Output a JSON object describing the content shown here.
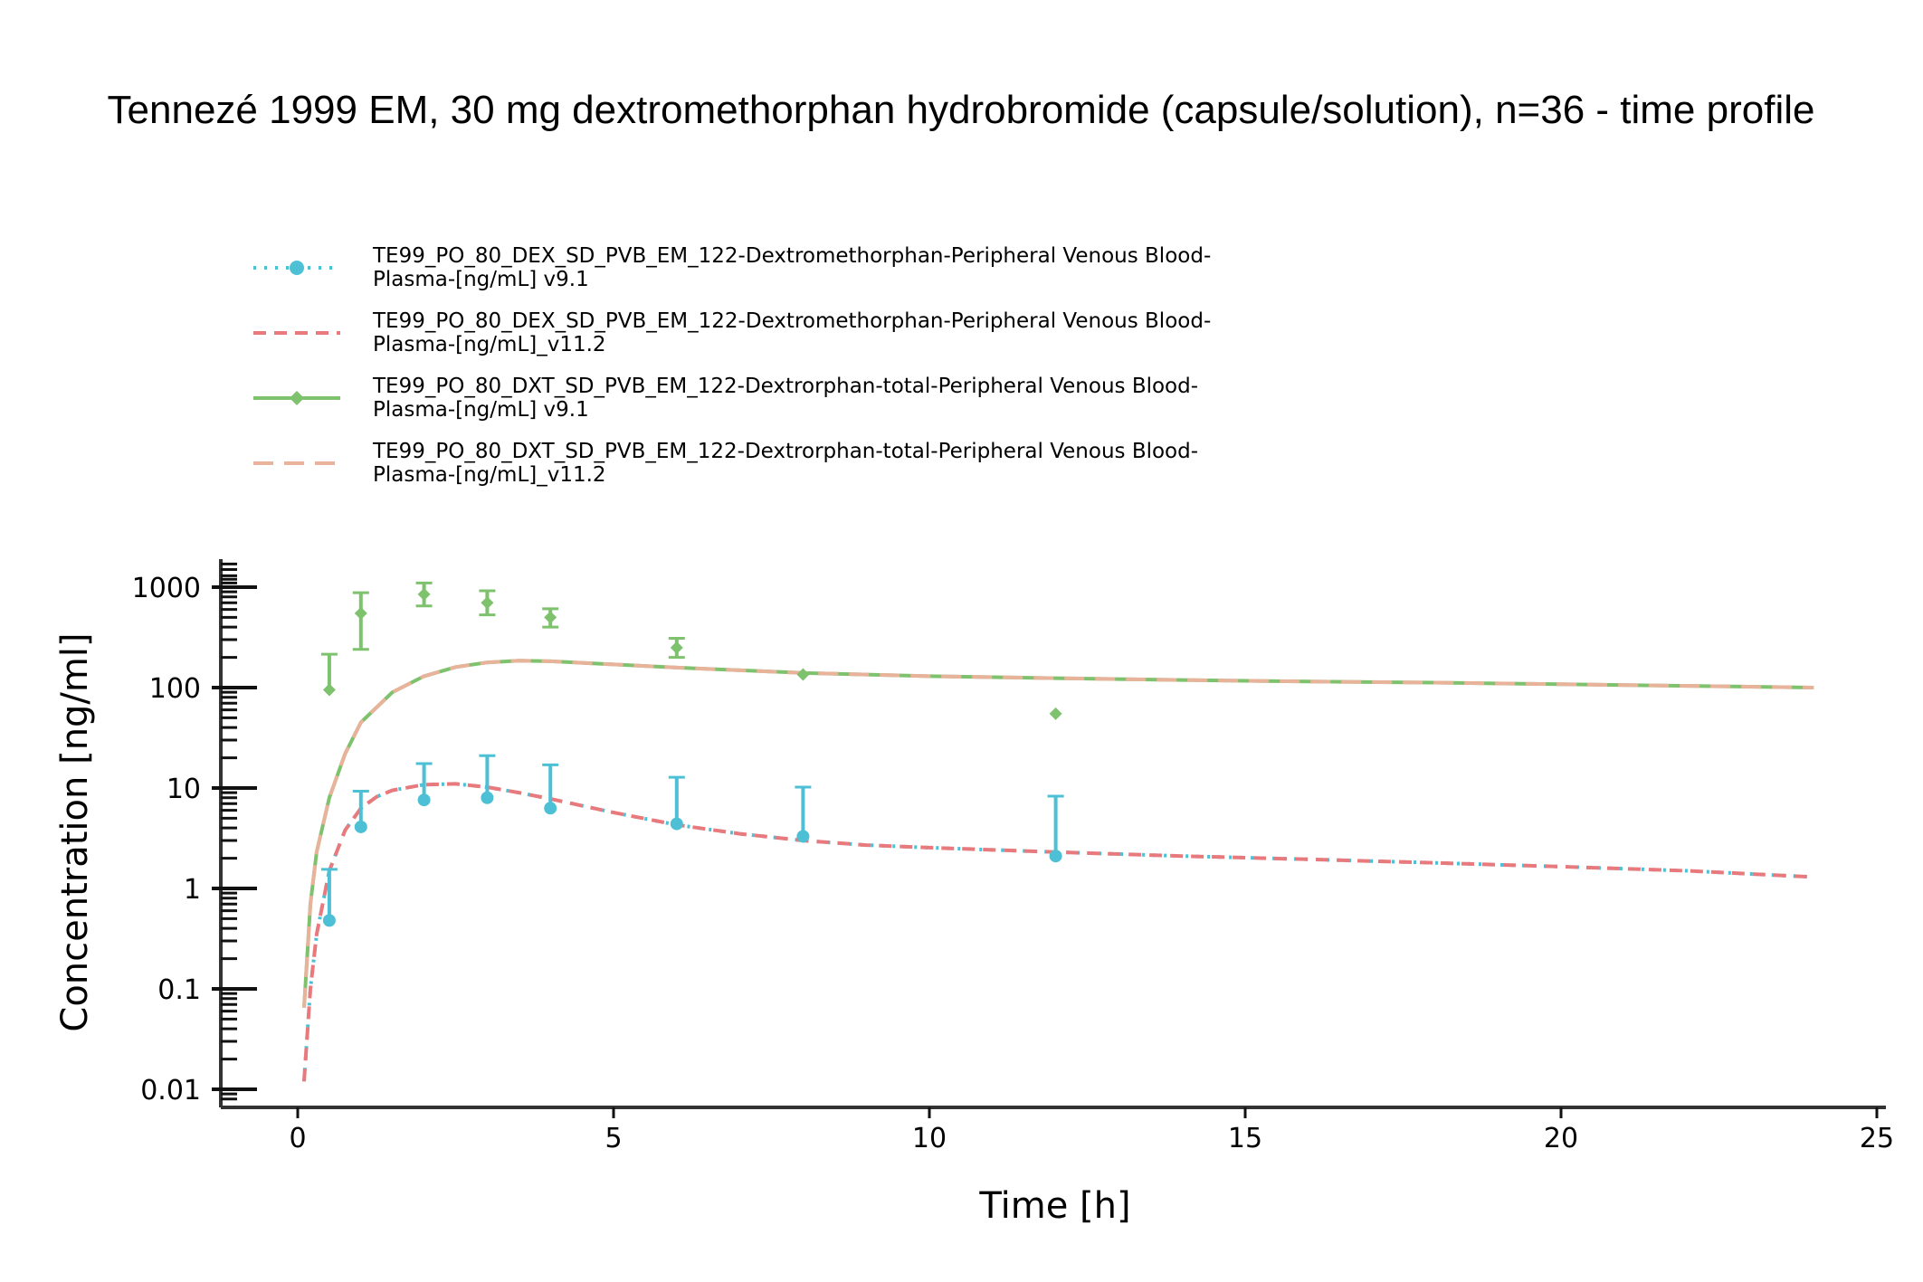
{
  "chart_data": {
    "type": "scatter",
    "title": "Tennezé 1999 EM, 30 mg dextromethorphan hydrobromide (capsule/solution), n=36 - time profile",
    "xlabel": "Time [h]",
    "ylabel": "Concentration [ng/ml]",
    "xlim": [
      -1.2,
      25.2
    ],
    "ylim": [
      0.007,
      2000
    ],
    "yscale": "log",
    "xticks": [
      0,
      5,
      10,
      15,
      20,
      25
    ],
    "xtick_labels": [
      "0",
      "5",
      "10",
      "15",
      "20",
      "25"
    ],
    "yticks": [
      0.01,
      0.1,
      1,
      10,
      100,
      1000
    ],
    "ytick_labels": [
      "0.01",
      "0.1",
      "1",
      "10",
      "100",
      "1000"
    ],
    "grid": false,
    "legend_position": "top-left",
    "series": [
      {
        "name": "TE99_PO_80_DEX_SD_PVB_EM_122-Dextromethorphan-Peripheral Venous Blood-Plasma-[ng/mL] v9.1",
        "legend_lines": [
          "TE99_PO_80_DEX_SD_PVB_EM_122-Dextromethorphan-Peripheral Venous Blood-",
          "Plasma-[ng/mL] v9.1"
        ],
        "kind": "observed-with-curve",
        "marker": "circle",
        "line_style": "dotted",
        "color": "#4DC0D6",
        "x": [
          0.5,
          1,
          2,
          3,
          4,
          6,
          8,
          12
        ],
        "y": [
          0.48,
          4.1,
          7.6,
          8.0,
          6.3,
          4.4,
          3.3,
          2.1
        ],
        "y_upper": [
          1.55,
          9.3,
          17.5,
          21.0,
          17.0,
          12.8,
          10.2,
          8.3
        ],
        "curve_x": [
          0.1,
          0.2,
          0.3,
          0.5,
          0.75,
          1,
          1.25,
          1.5,
          2,
          2.5,
          3,
          3.5,
          4,
          5,
          6,
          7,
          8,
          9,
          10,
          12,
          14,
          16,
          18,
          20,
          22,
          24
        ],
        "curve_y": [
          0.012,
          0.1,
          0.35,
          1.5,
          3.8,
          6.3,
          8.2,
          9.5,
          10.8,
          11.0,
          10.2,
          9.0,
          7.8,
          5.7,
          4.3,
          3.5,
          3.0,
          2.7,
          2.55,
          2.3,
          2.1,
          1.95,
          1.8,
          1.65,
          1.5,
          1.3
        ]
      },
      {
        "name": "TE99_PO_80_DEX_SD_PVB_EM_122-Dextromethorphan-Peripheral Venous Blood-Plasma-[ng/mL]_v11.2",
        "legend_lines": [
          "TE99_PO_80_DEX_SD_PVB_EM_122-Dextromethorphan-Peripheral Venous Blood-",
          "Plasma-[ng/mL]_v11.2"
        ],
        "kind": "curve",
        "line_style": "dashed",
        "color": "#E8797C",
        "x": [
          0.1,
          0.2,
          0.3,
          0.5,
          0.75,
          1,
          1.25,
          1.5,
          2,
          2.5,
          3,
          3.5,
          4,
          5,
          6,
          7,
          8,
          9,
          10,
          12,
          14,
          16,
          18,
          20,
          22,
          24
        ],
        "y": [
          0.012,
          0.1,
          0.35,
          1.5,
          3.8,
          6.3,
          8.2,
          9.5,
          10.8,
          11.0,
          10.2,
          9.0,
          7.8,
          5.7,
          4.3,
          3.5,
          3.0,
          2.7,
          2.55,
          2.3,
          2.1,
          1.95,
          1.8,
          1.65,
          1.5,
          1.3
        ]
      },
      {
        "name": "TE99_PO_80_DXT_SD_PVB_EM_122-Dextrorphan-total-Peripheral Venous Blood-Plasma-[ng/mL] v9.1",
        "legend_lines": [
          "TE99_PO_80_DXT_SD_PVB_EM_122-Dextrorphan-total-Peripheral Venous Blood-",
          "Plasma-[ng/mL] v9.1"
        ],
        "kind": "observed-with-curve",
        "marker": "diamond",
        "line_style": "solid",
        "color": "#7EC26E",
        "x": [
          0.5,
          1,
          2,
          3,
          4,
          6,
          8,
          12
        ],
        "y": [
          95,
          550,
          850,
          700,
          500,
          250,
          135,
          55
        ],
        "y_upper": [
          215,
          880,
          1100,
          920,
          610,
          310,
          null,
          null
        ],
        "y_lower": [
          null,
          240,
          650,
          530,
          400,
          200,
          null,
          null
        ],
        "curve_x": [
          0.1,
          0.2,
          0.3,
          0.5,
          0.75,
          1,
          1.5,
          2,
          2.5,
          3,
          3.5,
          4,
          5,
          6,
          8,
          10,
          12,
          14,
          16,
          18,
          20,
          22,
          24
        ],
        "curve_y": [
          0.065,
          0.7,
          2.3,
          8,
          22,
          45,
          90,
          130,
          160,
          178,
          185,
          183,
          170,
          158,
          140,
          130,
          124,
          119,
          115,
          112,
          108,
          104,
          100
        ]
      },
      {
        "name": "TE99_PO_80_DXT_SD_PVB_EM_122-Dextrorphan-total-Peripheral Venous Blood-Plasma-[ng/mL]_v11.2",
        "legend_lines": [
          "TE99_PO_80_DXT_SD_PVB_EM_122-Dextrorphan-total-Peripheral Venous Blood-",
          "Plasma-[ng/mL]_v11.2"
        ],
        "kind": "curve",
        "line_style": "long-dashed",
        "color": "#E9B29A",
        "x": [
          0.1,
          0.2,
          0.3,
          0.5,
          0.75,
          1,
          1.5,
          2,
          2.5,
          3,
          3.5,
          4,
          5,
          6,
          8,
          10,
          12,
          14,
          16,
          18,
          20,
          22,
          24
        ],
        "y": [
          0.065,
          0.7,
          2.3,
          8,
          22,
          45,
          90,
          130,
          160,
          178,
          185,
          183,
          170,
          158,
          140,
          130,
          124,
          119,
          115,
          112,
          108,
          104,
          100
        ]
      }
    ]
  }
}
